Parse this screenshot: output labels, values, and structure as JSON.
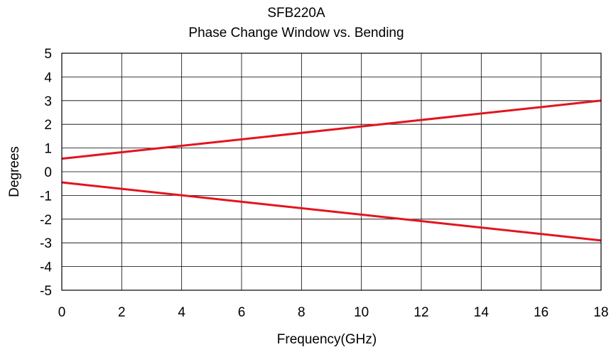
{
  "chart_data": {
    "type": "line",
    "title": "SFB220A",
    "subtitle": "Phase Change Window vs. Bending",
    "xlabel": "Frequency(GHz)",
    "ylabel": "Degrees",
    "xlim": [
      0,
      18
    ],
    "ylim": [
      -5,
      5
    ],
    "x_ticks": [
      "0",
      "2",
      "4",
      "6",
      "8",
      "10",
      "12",
      "14",
      "16",
      "18"
    ],
    "y_ticks": [
      "5",
      "4",
      "3",
      "2",
      "1",
      "0",
      "-1",
      "-2",
      "-3",
      "-4",
      "-5"
    ],
    "grid": true,
    "legend": "none",
    "series": [
      {
        "color": "#e3141e",
        "x": [
          0,
          18
        ],
        "y": [
          0.55,
          3.0
        ]
      },
      {
        "color": "#e3141e",
        "x": [
          0,
          18
        ],
        "y": [
          -0.45,
          -2.9
        ]
      }
    ]
  }
}
